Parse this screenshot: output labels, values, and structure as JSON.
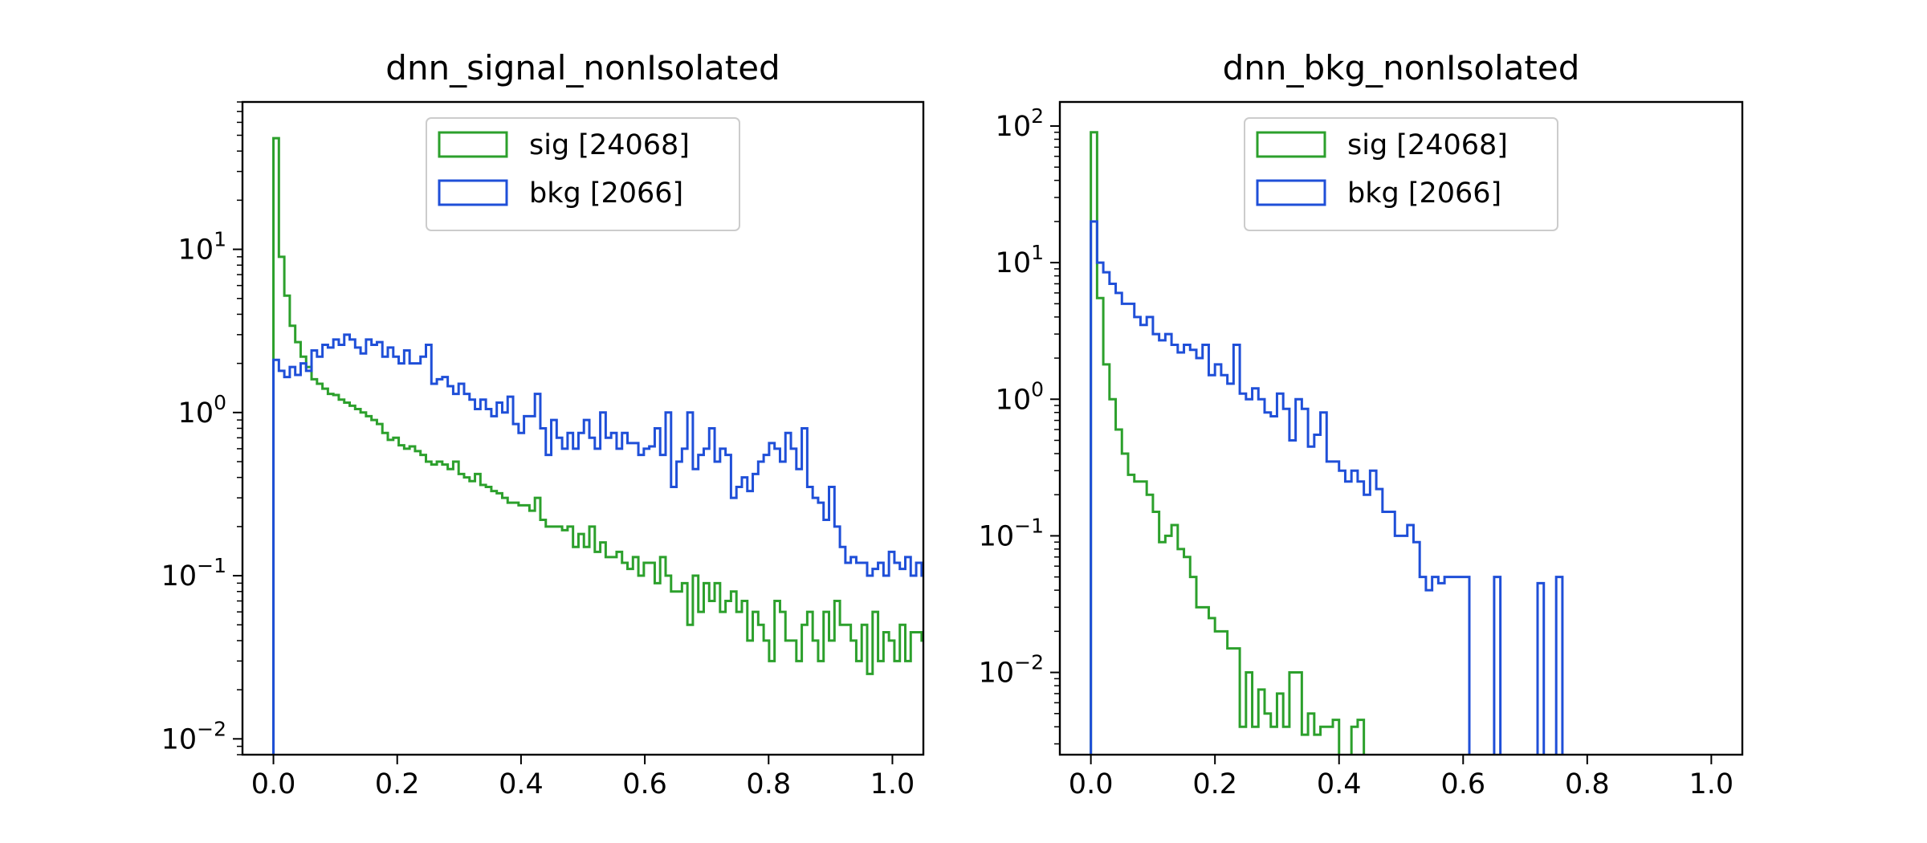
{
  "figure": {
    "legend_location": "upper center",
    "series_colors": {
      "sig": "#2ca02c",
      "bkg": "#1f4fd8"
    }
  },
  "chart_data": [
    {
      "type": "histogram",
      "title": "dnn_signal_nonIsolated",
      "xlabel": "",
      "ylabel": "",
      "xlim": [
        -0.05,
        1.05
      ],
      "ylim": [
        0.008,
        80
      ],
      "yscale": "log",
      "grid": false,
      "legend_position": "top-center",
      "xticks": [
        {
          "value": 0.0,
          "label": "0.0"
        },
        {
          "value": 0.2,
          "label": "0.2"
        },
        {
          "value": 0.4,
          "label": "0.4"
        },
        {
          "value": 0.6,
          "label": "0.6"
        },
        {
          "value": 0.8,
          "label": "0.8"
        },
        {
          "value": 1.0,
          "label": "1.0"
        }
      ],
      "yticks": [
        {
          "value": 10,
          "base": "10",
          "exp": "1"
        },
        {
          "value": 1,
          "base": "10",
          "exp": "0"
        },
        {
          "value": 0.1,
          "base": "10",
          "exp": "−1"
        },
        {
          "value": 0.01,
          "base": "10",
          "exp": "−2"
        }
      ],
      "bin_width": 0.0088,
      "series": [
        {
          "name": "sig [24068]",
          "color": "#2ca02c",
          "values": [
            48,
            9,
            5.2,
            3.4,
            2.7,
            2.2,
            1.9,
            1.6,
            1.5,
            1.4,
            1.3,
            1.28,
            1.2,
            1.15,
            1.1,
            1.05,
            1.0,
            0.95,
            0.9,
            0.85,
            0.75,
            0.68,
            0.7,
            0.63,
            0.6,
            0.62,
            0.58,
            0.55,
            0.5,
            0.48,
            0.5,
            0.48,
            0.45,
            0.5,
            0.42,
            0.4,
            0.38,
            0.42,
            0.36,
            0.35,
            0.33,
            0.32,
            0.3,
            0.28,
            0.28,
            0.27,
            0.27,
            0.25,
            0.3,
            0.22,
            0.2,
            0.2,
            0.2,
            0.19,
            0.2,
            0.15,
            0.18,
            0.15,
            0.2,
            0.14,
            0.16,
            0.13,
            0.13,
            0.14,
            0.12,
            0.11,
            0.13,
            0.1,
            0.12,
            0.12,
            0.09,
            0.13,
            0.1,
            0.08,
            0.08,
            0.09,
            0.05,
            0.1,
            0.06,
            0.09,
            0.07,
            0.09,
            0.06,
            0.07,
            0.08,
            0.06,
            0.07,
            0.04,
            0.06,
            0.05,
            0.04,
            0.03,
            0.07,
            0.06,
            0.04,
            0.04,
            0.03,
            0.05,
            0.06,
            0.04,
            0.03,
            0.06,
            0.04,
            0.07,
            0.05,
            0.05,
            0.04,
            0.03,
            0.05,
            0.025,
            0.06,
            0.03,
            0.045,
            0.04,
            0.03,
            0.05,
            0.03,
            0.045,
            0.045,
            0.04,
            0.03,
            0.025,
            0.045,
            0.04,
            0.045,
            0.03,
            0.02,
            0.045,
            0.035,
            0.04,
            0.03,
            0.02
          ]
        },
        {
          "name": "bkg [2066]",
          "color": "#1f4fd8",
          "values": [
            2.1,
            1.8,
            1.65,
            1.9,
            1.7,
            2.0,
            1.8,
            2.4,
            2.2,
            2.6,
            2.5,
            2.8,
            2.6,
            3.0,
            2.8,
            2.5,
            2.3,
            2.8,
            2.6,
            2.7,
            2.2,
            2.5,
            2.2,
            2.0,
            2.4,
            2.0,
            2.0,
            2.2,
            2.6,
            1.5,
            1.6,
            1.65,
            1.45,
            1.3,
            1.5,
            1.3,
            1.2,
            1.05,
            1.2,
            1.05,
            0.95,
            1.15,
            1.0,
            1.25,
            0.85,
            0.75,
            0.95,
            0.95,
            1.3,
            0.8,
            0.55,
            0.9,
            0.7,
            0.6,
            0.75,
            0.6,
            0.75,
            0.9,
            0.7,
            0.6,
            1.0,
            0.7,
            0.75,
            0.6,
            0.75,
            0.65,
            0.65,
            0.55,
            0.6,
            0.62,
            0.8,
            0.55,
            1.0,
            0.35,
            0.5,
            0.6,
            1.0,
            0.45,
            0.55,
            0.6,
            0.8,
            0.5,
            0.6,
            0.55,
            0.3,
            0.35,
            0.4,
            0.33,
            0.42,
            0.5,
            0.55,
            0.65,
            0.6,
            0.5,
            0.75,
            0.6,
            0.45,
            0.8,
            0.35,
            0.3,
            0.28,
            0.22,
            0.35,
            0.2,
            0.15,
            0.12,
            0.13,
            0.12,
            0.12,
            0.1,
            0.11,
            0.12,
            0.1,
            0.14,
            0.12,
            0.11,
            0.13,
            0.1,
            0.12,
            0.1,
            0.11,
            0.12,
            0.13,
            0.1,
            0.11,
            0.12,
            0.1,
            0.11,
            0.12,
            0.1
          ]
        }
      ]
    },
    {
      "type": "histogram",
      "title": "dnn_bkg_nonIsolated",
      "xlabel": "",
      "ylabel": "",
      "xlim": [
        -0.05,
        1.05
      ],
      "ylim": [
        0.0025,
        150
      ],
      "yscale": "log",
      "grid": false,
      "legend_position": "top-center",
      "xticks": [
        {
          "value": 0.0,
          "label": "0.0"
        },
        {
          "value": 0.2,
          "label": "0.2"
        },
        {
          "value": 0.4,
          "label": "0.4"
        },
        {
          "value": 0.6,
          "label": "0.6"
        },
        {
          "value": 0.8,
          "label": "0.8"
        },
        {
          "value": 1.0,
          "label": "1.0"
        }
      ],
      "yticks": [
        {
          "value": 100,
          "base": "10",
          "exp": "2"
        },
        {
          "value": 10,
          "base": "10",
          "exp": "1"
        },
        {
          "value": 1,
          "base": "10",
          "exp": "0"
        },
        {
          "value": 0.1,
          "base": "10",
          "exp": "−1"
        },
        {
          "value": 0.01,
          "base": "10",
          "exp": "−2"
        }
      ],
      "bin_width": 0.01,
      "series": [
        {
          "name": "sig [24068]",
          "color": "#2ca02c",
          "values": [
            90,
            5.5,
            1.8,
            1.0,
            0.6,
            0.4,
            0.28,
            0.25,
            0.25,
            0.2,
            0.15,
            0.09,
            0.1,
            0.12,
            0.08,
            0.07,
            0.05,
            0.03,
            0.03,
            0.025,
            0.02,
            0.02,
            0.015,
            0.015,
            0.004,
            0.01,
            0.004,
            0.0075,
            0.005,
            0.004,
            0.007,
            0.004,
            0.01,
            0.01,
            0.0035,
            0.005,
            0.0035,
            0.004,
            0.004,
            0.0045,
            0,
            0,
            0.004,
            0.0045,
            0,
            0,
            0,
            0,
            0,
            0,
            0,
            0,
            0,
            0,
            0,
            0,
            0,
            0,
            0,
            0,
            0,
            0,
            0,
            0,
            0,
            0,
            0,
            0,
            0,
            0,
            0,
            0,
            0,
            0,
            0,
            0,
            0,
            0,
            0,
            0,
            0,
            0,
            0,
            0,
            0,
            0,
            0,
            0,
            0,
            0,
            0,
            0,
            0,
            0,
            0,
            0,
            0,
            0,
            0,
            0
          ]
        },
        {
          "name": "bkg [2066]",
          "color": "#1f4fd8",
          "values": [
            20,
            10,
            8.5,
            7.0,
            6.0,
            5.0,
            5.0,
            4.0,
            3.5,
            4.0,
            3.0,
            2.7,
            3.0,
            2.5,
            2.2,
            2.5,
            2.3,
            2.0,
            2.5,
            1.5,
            1.8,
            1.5,
            1.3,
            2.5,
            1.1,
            1.0,
            1.2,
            1.0,
            0.8,
            0.75,
            1.1,
            0.85,
            0.5,
            1.0,
            0.85,
            0.45,
            0.55,
            0.8,
            0.35,
            0.35,
            0.3,
            0.25,
            0.3,
            0.25,
            0.2,
            0.3,
            0.22,
            0.15,
            0.15,
            0.1,
            0.1,
            0.12,
            0.09,
            0.05,
            0.04,
            0.05,
            0.045,
            0.05,
            0.05,
            0.05,
            0.05,
            0,
            0,
            0,
            0,
            0.05,
            0,
            0,
            0,
            0,
            0,
            0,
            0.045,
            0,
            0,
            0.05,
            0,
            0,
            0,
            0,
            0,
            0,
            0,
            0,
            0,
            0,
            0,
            0,
            0,
            0,
            0,
            0,
            0,
            0,
            0,
            0,
            0,
            0,
            0,
            0
          ]
        }
      ]
    }
  ]
}
